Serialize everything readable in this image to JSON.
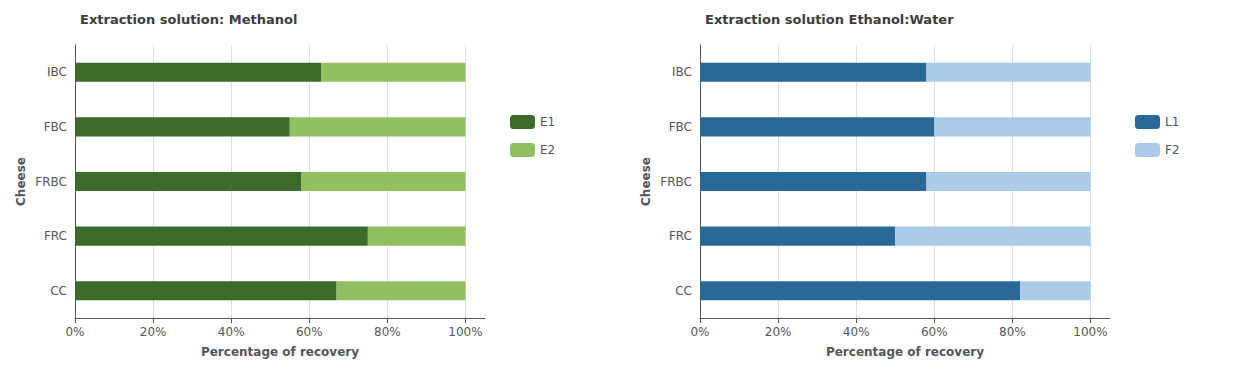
{
  "chart_data": [
    {
      "type": "bar",
      "orientation": "horizontal",
      "stacked": true,
      "title": "Extraction solution: Methanol",
      "categories": [
        "CC",
        "FRC",
        "FRBC",
        "FBC",
        "IBC"
      ],
      "series": [
        {
          "name": "E1",
          "color": "#3a6b2a",
          "values": [
            67,
            75,
            58,
            55,
            63
          ]
        },
        {
          "name": "E2",
          "color": "#90c060",
          "values": [
            33,
            25,
            42,
            45,
            37
          ]
        }
      ],
      "xlabel": "Percentage of recovery",
      "ylabel": "Cheese",
      "xlim": [
        0,
        105
      ],
      "xticks": [
        {
          "value": 0,
          "label": "0%"
        },
        {
          "value": 20,
          "label": "20%"
        },
        {
          "value": 40,
          "label": "40%"
        },
        {
          "value": 60,
          "label": "60%"
        },
        {
          "value": 80,
          "label": "80%"
        },
        {
          "value": 100,
          "label": "100%"
        }
      ],
      "grid": true,
      "legend": "right"
    },
    {
      "type": "bar",
      "orientation": "horizontal",
      "stacked": true,
      "title": "Extraction solution Ethanol:Water",
      "categories": [
        "CC",
        "FRC",
        "FRBC",
        "FBC",
        "IBC"
      ],
      "series": [
        {
          "name": "L1",
          "color": "#2a6898",
          "values": [
            82,
            50,
            58,
            60,
            58
          ]
        },
        {
          "name": "F2",
          "color": "#aacce8",
          "values": [
            18,
            50,
            42,
            40,
            42
          ]
        }
      ],
      "xlabel": "Percentage of recovery",
      "ylabel": "Cheese",
      "xlim": [
        0,
        105
      ],
      "xticks": [
        {
          "value": 0,
          "label": "0%"
        },
        {
          "value": 20,
          "label": "20%"
        },
        {
          "value": 40,
          "label": "40%"
        },
        {
          "value": 60,
          "label": "60%"
        },
        {
          "value": 80,
          "label": "80%"
        },
        {
          "value": 100,
          "label": "100%"
        }
      ],
      "grid": true,
      "legend": "right"
    }
  ]
}
